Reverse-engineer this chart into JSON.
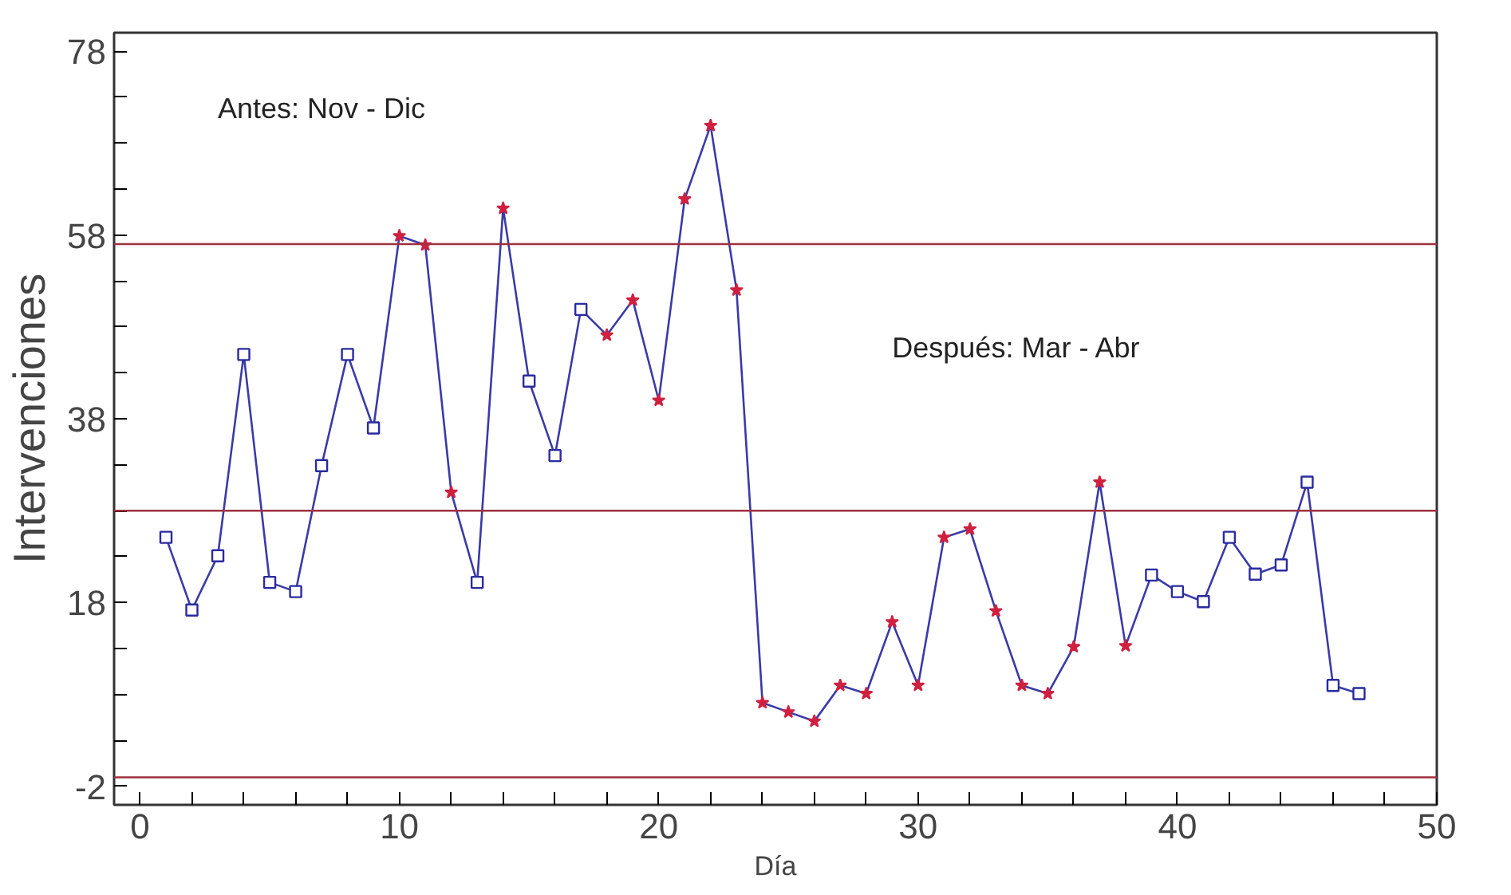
{
  "chart_data": {
    "type": "line",
    "xlabel": "Día",
    "ylabel": "Intervenciones",
    "annotations": [
      "Antes: Nov - Dic",
      "Después: Mar - Abr"
    ],
    "x": [
      1,
      2,
      3,
      4,
      5,
      6,
      7,
      8,
      9,
      10,
      11,
      12,
      13,
      14,
      15,
      16,
      17,
      18,
      19,
      20,
      21,
      22,
      23,
      24,
      25,
      26,
      27,
      28,
      29,
      30,
      31,
      32,
      33,
      34,
      35,
      36,
      37,
      38,
      39,
      40,
      41,
      42,
      43,
      44,
      45,
      46,
      47
    ],
    "series": [
      {
        "color": "#3a3aa8",
        "marker": "none",
        "line_style": "solid",
        "values": [
          25.1,
          17.2,
          23.1,
          45.0,
          20.2,
          19.2,
          32.9,
          45.0,
          37.0,
          57.9,
          56.9,
          30.0,
          20.2,
          60.9,
          42.1,
          34.0,
          49.9,
          47.1,
          50.9,
          40.0,
          61.9,
          69.9,
          52.0,
          7.1,
          6.1,
          5.1,
          9.0,
          8.1,
          15.9,
          9.0,
          25.1,
          26.0,
          17.1,
          9.0,
          8.1,
          13.2,
          31.1,
          13.3,
          21.0,
          19.2,
          18.1,
          25.1,
          21.1,
          22.1,
          31.1,
          9.0,
          8.1
        ]
      },
      {
        "type": "scatter",
        "color": "#2a2aa0",
        "marker": "square",
        "values": [
          25.1,
          17.2,
          23.1,
          45.0,
          20.2,
          19.2,
          32.9,
          45.0,
          37.0,
          null,
          null,
          null,
          20.2,
          null,
          42.1,
          34.0,
          49.9,
          null,
          null,
          null,
          null,
          null,
          null,
          null,
          null,
          null,
          null,
          null,
          null,
          null,
          null,
          null,
          null,
          null,
          null,
          null,
          null,
          null,
          21.0,
          19.2,
          18.1,
          25.1,
          21.1,
          22.1,
          31.1,
          9.0,
          8.1
        ]
      },
      {
        "type": "scatter",
        "color": "#d02040",
        "marker": "star",
        "values": [
          null,
          null,
          null,
          null,
          null,
          null,
          null,
          null,
          null,
          57.9,
          56.9,
          30.0,
          null,
          60.9,
          null,
          null,
          null,
          47.1,
          50.9,
          40.0,
          61.9,
          69.9,
          52.0,
          7.1,
          6.1,
          5.1,
          9.0,
          8.1,
          15.9,
          9.0,
          25.1,
          26.0,
          17.1,
          9.0,
          8.1,
          13.2,
          31.1,
          13.3,
          null,
          null,
          null,
          null,
          null,
          null,
          null,
          null,
          null
        ]
      }
    ],
    "xlim": [
      -1,
      50
    ],
    "ylim": [
      -4,
      80
    ],
    "xticks": [
      0,
      {
        "value": 2,
        "label": null
      },
      {
        "value": 4,
        "label": null
      },
      {
        "value": 6,
        "label": null
      },
      {
        "value": 8,
        "label": null
      },
      10,
      {
        "value": 12,
        "label": null
      },
      {
        "value": 14,
        "label": null
      },
      {
        "value": 16,
        "label": null
      },
      {
        "value": 18,
        "label": null
      },
      20,
      {
        "value": 22,
        "label": null
      },
      {
        "value": 24,
        "label": null
      },
      {
        "value": 26,
        "label": null
      },
      {
        "value": 28,
        "label": null
      },
      30,
      {
        "value": 32,
        "label": null
      },
      {
        "value": 34,
        "label": null
      },
      {
        "value": 36,
        "label": null
      },
      {
        "value": 38,
        "label": null
      },
      40,
      {
        "value": 42,
        "label": null
      },
      {
        "value": 44,
        "label": null
      },
      {
        "value": 46,
        "label": null
      },
      {
        "value": 48,
        "label": null
      },
      50
    ],
    "yticks": [
      -2,
      {
        "value": 3,
        "label": null
      },
      {
        "value": 8,
        "label": null
      },
      {
        "value": 13,
        "label": null
      },
      18,
      {
        "value": 23,
        "label": null
      },
      {
        "value": 28,
        "label": null
      },
      {
        "value": 33,
        "label": null
      },
      38,
      {
        "value": 43,
        "label": null
      },
      {
        "value": 48,
        "label": null
      },
      {
        "value": 53,
        "label": null
      },
      58,
      {
        "value": 63,
        "label": null
      },
      {
        "value": 68,
        "label": null
      },
      {
        "value": 73,
        "label": null
      },
      78
    ],
    "ref_lines": [
      {
        "axis": "y",
        "value": 57,
        "label": null,
        "color": "#a03040"
      },
      {
        "axis": "y",
        "value": 28,
        "label": null,
        "color": "#a03040"
      },
      {
        "axis": "y",
        "value": -1,
        "label": null,
        "color": "#a03040"
      }
    ],
    "grid": false
  }
}
